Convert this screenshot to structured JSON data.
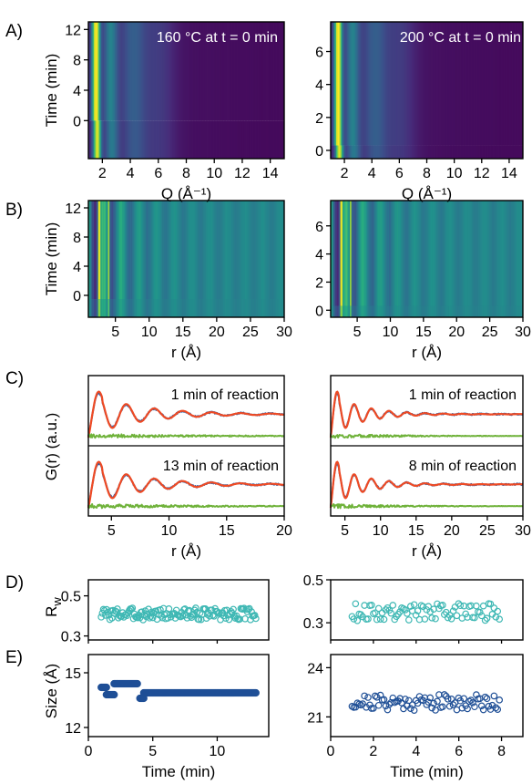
{
  "figure": {
    "panel_letters": {
      "A": "A)",
      "B": "B)",
      "C": "C)",
      "D": "D)",
      "E": "E)"
    }
  },
  "chart_data": [
    {
      "id": "A-left",
      "type": "heatmap",
      "panel": "A)",
      "title": "160 °C at t = 0 min",
      "xlabel": "Q (Å⁻¹)",
      "ylabel": "Time (min)",
      "xlim": [
        1,
        15
      ],
      "ylim": [
        -5,
        13
      ],
      "xticks": [
        "2",
        "4",
        "6",
        "8",
        "10",
        "12",
        "14"
      ],
      "yticks": [
        "0",
        "4",
        "8",
        "12"
      ],
      "description_values": {
        "bright_band_Q": [
          1.3,
          1.9
        ],
        "shift_at_time": 0
      }
    },
    {
      "id": "A-right",
      "type": "heatmap",
      "panel": "A)",
      "title": "200 °C at t = 0 min",
      "xlabel": "Q (Å⁻¹)",
      "ylabel": "",
      "xlim": [
        1,
        15
      ],
      "ylim": [
        -0.5,
        7.8
      ],
      "xticks": [
        "2",
        "4",
        "6",
        "8",
        "10",
        "12",
        "14"
      ],
      "yticks": [
        "0",
        "2",
        "4",
        "6"
      ]
    },
    {
      "id": "B-left",
      "type": "heatmap",
      "panel": "B)",
      "xlabel": "r (Å)",
      "ylabel": "Time (min)",
      "xlim": [
        1,
        30
      ],
      "ylim": [
        -3,
        13
      ],
      "xticks": [
        "5",
        "10",
        "15",
        "20",
        "25",
        "30"
      ],
      "yticks": [
        "0",
        "4",
        "8",
        "12"
      ]
    },
    {
      "id": "B-right",
      "type": "heatmap",
      "panel": "B)",
      "xlabel": "r (Å)",
      "ylabel": "",
      "xlim": [
        1,
        30
      ],
      "ylim": [
        -0.5,
        7.8
      ],
      "xticks": [
        "5",
        "10",
        "15",
        "20",
        "25",
        "30"
      ],
      "yticks": [
        "0",
        "2",
        "4",
        "6"
      ]
    },
    {
      "id": "C-left",
      "type": "line",
      "panel": "C)",
      "xlabel": "r (Å)",
      "ylabel": "G(r) (a.u.)",
      "xlim": [
        3,
        20
      ],
      "xticks": [
        "5",
        "10",
        "15",
        "20"
      ],
      "subplots": [
        {
          "caption": "1 min of reaction"
        },
        {
          "caption": "13 min of reaction"
        }
      ],
      "series": [
        {
          "color": "#2e5fa8",
          "role": "observed"
        },
        {
          "color": "#ee4a24",
          "role": "fit"
        },
        {
          "color": "#6fb23a",
          "role": "difference"
        }
      ]
    },
    {
      "id": "C-right",
      "type": "line",
      "panel": "C)",
      "xlabel": "r (Å)",
      "ylabel": "",
      "xlim": [
        3,
        30
      ],
      "xticks": [
        "5",
        "10",
        "15",
        "20",
        "25",
        "30"
      ],
      "subplots": [
        {
          "caption": "1 min of reaction"
        },
        {
          "caption": "8 min of reaction"
        }
      ]
    },
    {
      "id": "D-left",
      "type": "scatter",
      "panel": "D)",
      "ylabel_main": "R",
      "ylabel_sub": "w",
      "xlim": [
        0,
        14
      ],
      "ylim": [
        0.28,
        0.58
      ],
      "yticks": [
        "0.3",
        "0.5"
      ],
      "color": "#3fb8b4",
      "x_range": [
        1.0,
        13.0
      ],
      "y_mean": 0.41,
      "y_spread": 0.03
    },
    {
      "id": "D-right",
      "type": "scatter",
      "panel": "D)",
      "ylabel_main": "",
      "ylabel_sub": "",
      "xlim": [
        0,
        9
      ],
      "ylim": [
        0.22,
        0.5
      ],
      "yticks": [
        "0.3",
        "0.5"
      ],
      "color": "#3fb8b4",
      "x_range": [
        1.0,
        7.9
      ],
      "y_mean": 0.35,
      "y_spread": 0.04
    },
    {
      "id": "E-left",
      "type": "scatter",
      "panel": "E)",
      "xlabel": "Time (min)",
      "ylabel": "Size (Å)",
      "xlim": [
        0,
        14
      ],
      "ylim": [
        11.5,
        16
      ],
      "xticks": [
        "0",
        "5",
        "10"
      ],
      "yticks": [
        "12",
        "15"
      ],
      "color": "#1f4f96",
      "segments": [
        {
          "x": [
            1.0,
            1.4
          ],
          "y": 14.2
        },
        {
          "x": [
            1.4,
            2.0
          ],
          "y": 13.8
        },
        {
          "x": [
            2.0,
            3.8
          ],
          "y": 14.4
        },
        {
          "x": [
            4.0,
            4.3
          ],
          "y": 13.6
        },
        {
          "x": [
            4.3,
            13.0
          ],
          "y": 13.9
        }
      ]
    },
    {
      "id": "E-right",
      "type": "scatter",
      "panel": "E)",
      "xlabel": "Time (min)",
      "ylabel": "",
      "xlim": [
        0,
        9
      ],
      "ylim": [
        19.8,
        24.8
      ],
      "xticks": [
        "0",
        "2",
        "4",
        "6",
        "8"
      ],
      "yticks": [
        "21",
        "24"
      ],
      "color": "#1f4f96",
      "x_range": [
        1.0,
        7.9
      ],
      "y_mean": 21.9,
      "y_spread": 0.5
    }
  ]
}
